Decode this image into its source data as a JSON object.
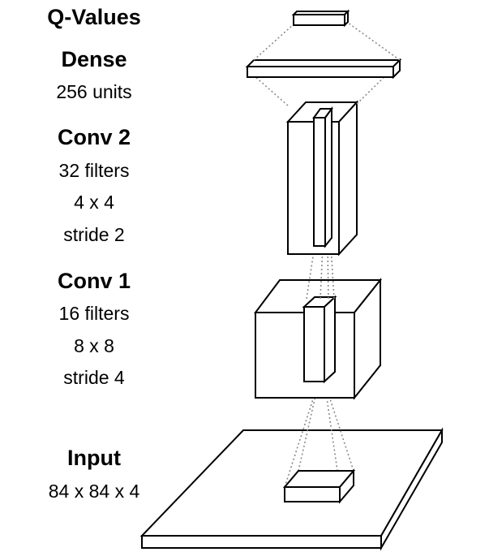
{
  "labels": {
    "qvalues": {
      "title": "Q-Values"
    },
    "dense": {
      "title": "Dense",
      "lines": [
        "256 units"
      ]
    },
    "conv2": {
      "title": "Conv 2",
      "lines": [
        "32 filters",
        "4 x 4",
        "stride 2"
      ]
    },
    "conv1": {
      "title": "Conv 1",
      "lines": [
        "16 filters",
        "8 x 8",
        "stride 4"
      ]
    },
    "input": {
      "title": "Input",
      "lines": [
        "84 x 84 x 4"
      ]
    }
  },
  "colors": {
    "stroke": "#000000",
    "fill": "#ffffff",
    "connector": "#8a8a8a"
  }
}
